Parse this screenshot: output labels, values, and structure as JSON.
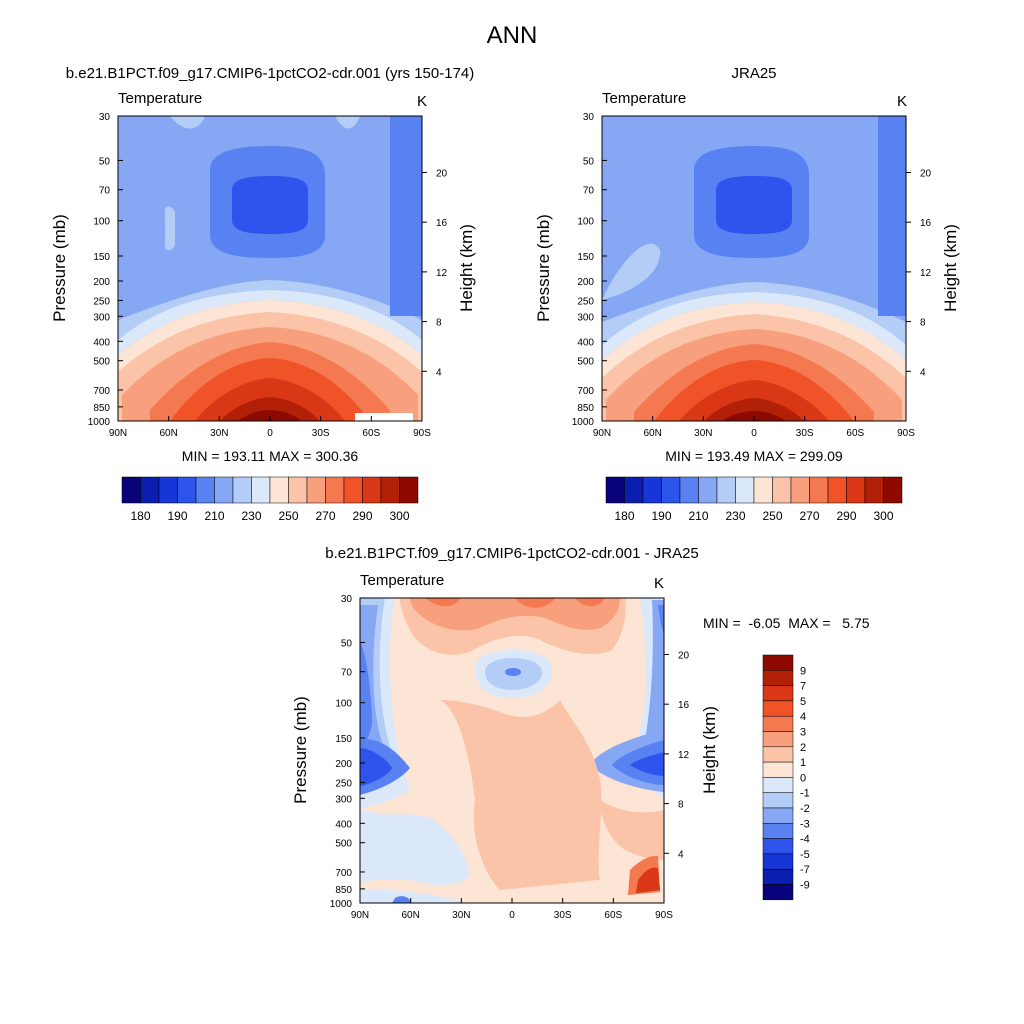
{
  "figure_title": "ANN",
  "chart_data": [
    {
      "type": "heatmap",
      "id": "model",
      "title": "b.e21.B1PCT.f09_g17.CMIP6-1pctCO2-cdr.001 (yrs 150-174)",
      "subtitle_left": "Temperature",
      "subtitle_right": "K",
      "ylabel": "Pressure (mb)",
      "ylabel_right": "Height (km)",
      "x_ticks": [
        "90N",
        "60N",
        "30N",
        "0",
        "30S",
        "60S",
        "90S"
      ],
      "x_tick_values": [
        90,
        60,
        30,
        0,
        -30,
        -60,
        -90
      ],
      "p_ticks": [
        30,
        50,
        70,
        100,
        150,
        200,
        250,
        300,
        400,
        500,
        700,
        850,
        1000
      ],
      "height_ticks": [
        4,
        8,
        12,
        16,
        20
      ],
      "ylim": [
        1000,
        30
      ],
      "xlim": [
        90,
        -90
      ],
      "stats_text": "MIN = 193.11  MAX = 300.36",
      "min": 193.11,
      "max": 300.36,
      "colorbar_labels": [
        "180",
        "190",
        "210",
        "230",
        "250",
        "270",
        "290",
        "300"
      ],
      "palette": "abs"
    },
    {
      "type": "heatmap",
      "id": "obs",
      "title": "JRA25",
      "subtitle_left": "Temperature",
      "subtitle_right": "K",
      "ylabel": "Pressure (mb)",
      "ylabel_right": "Height (km)",
      "x_ticks": [
        "90N",
        "60N",
        "30N",
        "0",
        "30S",
        "60S",
        "90S"
      ],
      "x_tick_values": [
        90,
        60,
        30,
        0,
        -30,
        -60,
        -90
      ],
      "p_ticks": [
        30,
        50,
        70,
        100,
        150,
        200,
        250,
        300,
        400,
        500,
        700,
        850,
        1000
      ],
      "height_ticks": [
        4,
        8,
        12,
        16,
        20
      ],
      "ylim": [
        1000,
        30
      ],
      "xlim": [
        90,
        -90
      ],
      "stats_text": "MIN = 193.49  MAX = 299.09",
      "min": 193.49,
      "max": 299.09,
      "colorbar_labels": [
        "180",
        "190",
        "210",
        "230",
        "250",
        "270",
        "290",
        "300"
      ],
      "palette": "abs"
    },
    {
      "type": "heatmap",
      "id": "diff",
      "title": "b.e21.B1PCT.f09_g17.CMIP6-1pctCO2-cdr.001 - JRA25",
      "subtitle_left": "Temperature",
      "subtitle_right": "K",
      "ylabel": "Pressure (mb)",
      "ylabel_right": "Height (km)",
      "x_ticks": [
        "90N",
        "60N",
        "30N",
        "0",
        "30S",
        "60S",
        "90S"
      ],
      "x_tick_values": [
        90,
        60,
        30,
        0,
        -30,
        -60,
        -90
      ],
      "p_ticks": [
        30,
        50,
        70,
        100,
        150,
        200,
        250,
        300,
        400,
        500,
        700,
        850,
        1000
      ],
      "height_ticks": [
        4,
        8,
        12,
        16,
        20
      ],
      "ylim": [
        1000,
        30
      ],
      "xlim": [
        90,
        -90
      ],
      "stats_text": "MIN =  -6.05  MAX =   5.75",
      "min": -6.05,
      "max": 5.75,
      "colorbar_labels": [
        "9",
        "7",
        "5",
        "4",
        "3",
        "2",
        "1",
        "0",
        "-1",
        "-2",
        "-3",
        "-4",
        "-5",
        "-7",
        "-9"
      ],
      "palette": "diff"
    }
  ],
  "colors": {
    "abs_palette": [
      "#08037a",
      "#0a1fb0",
      "#1736d8",
      "#2d55ee",
      "#5882f2",
      "#86a8f4",
      "#b4cdf6",
      "#dbe8fa",
      "#fde5d5",
      "#fbc4a8",
      "#f8a07d",
      "#f57950",
      "#ef5327",
      "#d93716",
      "#b22008",
      "#8e0a00"
    ],
    "diff_palette": [
      "#8e0a00",
      "#b22008",
      "#d93716",
      "#ef5327",
      "#f57950",
      "#f8a07d",
      "#fbc4a8",
      "#fde5d5",
      "#dbe8fa",
      "#b4cdf6",
      "#86a8f4",
      "#5882f2",
      "#2d55ee",
      "#1736d8",
      "#0a1fb0",
      "#08037a"
    ]
  }
}
